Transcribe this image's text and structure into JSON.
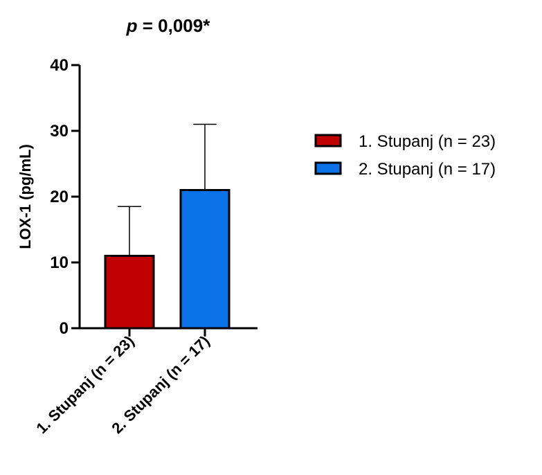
{
  "chart_data": {
    "type": "bar",
    "title_prefix": "p",
    "title_suffix": " = 0,009*",
    "xlabel": "",
    "ylabel": "LOX-1 (pg/mL)",
    "ylim": [
      0,
      40
    ],
    "yticks": [
      "0",
      "10",
      "20",
      "30",
      "40"
    ],
    "grid": false,
    "legend_position": "top-right",
    "categories": [
      "1. Stupanj (n = 23)",
      "2. Stupanj (n = 17)"
    ],
    "values": [
      11,
      21
    ],
    "error_upper": [
      7.5,
      10
    ],
    "colors": [
      "#c00000",
      "#0a72e6"
    ],
    "legend": [
      {
        "label": "1. Stupanj (n = 23)",
        "color": "#c00000"
      },
      {
        "label": "2. Stupanj (n = 17)",
        "color": "#0a72e6"
      }
    ]
  }
}
